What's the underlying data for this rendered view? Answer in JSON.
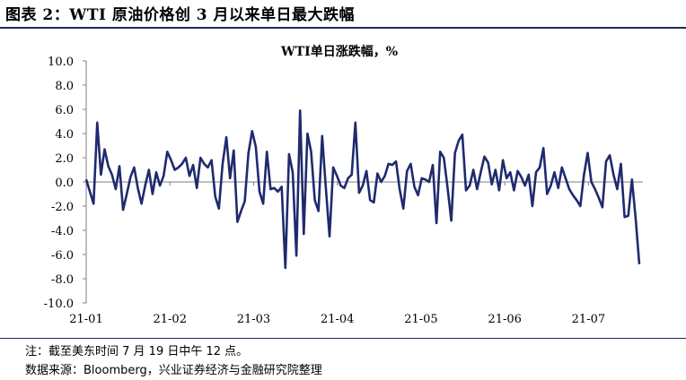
{
  "figure_title": "图表 2：WTI 原油价格创 3 月以来单日最大跌幅",
  "notes": {
    "line1": "注：截至美东时间 7 月 19 日中午 12 点。",
    "line2": "数据来源：Bloomberg，兴业证券经济与金融研究院整理"
  },
  "chart_data": {
    "type": "line",
    "title": "WTI单日涨跌幅，%",
    "xlabel": "",
    "ylabel": "",
    "ylim": [
      -10,
      10
    ],
    "yticks": [
      -10,
      -8,
      -6,
      -4,
      -2,
      0,
      2,
      4,
      6,
      8,
      10
    ],
    "ytick_labels": [
      "-10.0",
      "-8.0",
      "-6.0",
      "-4.0",
      "-2.0",
      "0.0",
      "2.0",
      "4.0",
      "6.0",
      "8.0",
      "10.0"
    ],
    "xtick_labels": [
      "21-01",
      "21-02",
      "21-03",
      "21-04",
      "21-05",
      "21-06",
      "21-07"
    ],
    "grid": false,
    "line_color": "#1f2a6e",
    "series": [
      {
        "values": [
          0.2,
          -0.8,
          -1.8,
          4.9,
          0.6,
          2.7,
          1.3,
          0.6,
          -0.6,
          1.3,
          -2.3,
          -1.0,
          0.4,
          1.2,
          -0.5,
          -1.8,
          -0.3,
          1.0,
          -1.0,
          0.8,
          -0.3,
          0.5,
          2.5,
          1.8,
          1.0,
          1.2,
          1.5,
          2.0,
          0.5,
          1.4,
          -0.5,
          2.0,
          1.5,
          1.2,
          1.8,
          -1.2,
          -2.2,
          1.5,
          3.7,
          0.3,
          2.6,
          -3.3,
          -2.4,
          -1.6,
          2.4,
          4.2,
          2.9,
          -0.8,
          -1.8,
          2.5,
          -0.6,
          -0.5,
          -0.8,
          -0.4,
          -7.1,
          2.3,
          0.8,
          -6.1,
          5.9,
          -4.3,
          4.0,
          2.5,
          -1.5,
          -2.4,
          3.8,
          -0.5,
          -4.5,
          1.2,
          0.5,
          -0.3,
          -0.5,
          0.3,
          0.6,
          4.9,
          -0.9,
          -0.3,
          0.9,
          -1.5,
          -1.7,
          0.7,
          0.0,
          0.5,
          1.5,
          1.4,
          1.7,
          -0.6,
          -2.2,
          0.9,
          1.5,
          -0.4,
          -1.1,
          0.3,
          0.2,
          0.0,
          1.4,
          -3.4,
          2.5,
          2.0,
          -0.5,
          -3.2,
          2.4,
          3.4,
          3.9,
          -0.7,
          -0.3,
          1.0,
          -0.6,
          0.8,
          2.1,
          1.6,
          -0.2,
          1.0,
          -0.7,
          1.8,
          0.3,
          0.8,
          -0.7,
          0.9,
          0.4,
          -0.3,
          0.6,
          -2.0,
          0.8,
          1.2,
          2.8,
          -1.0,
          -0.3,
          0.8,
          -0.5,
          1.2,
          0.3,
          -0.6,
          -1.1,
          -1.5,
          -2.0,
          0.6,
          2.4,
          0.0,
          -0.6,
          -1.3,
          -2.1,
          1.7,
          2.2,
          0.6,
          -0.6,
          1.5,
          -2.9,
          -2.8,
          0.2,
          -3.0,
          -6.8
        ]
      }
    ]
  }
}
